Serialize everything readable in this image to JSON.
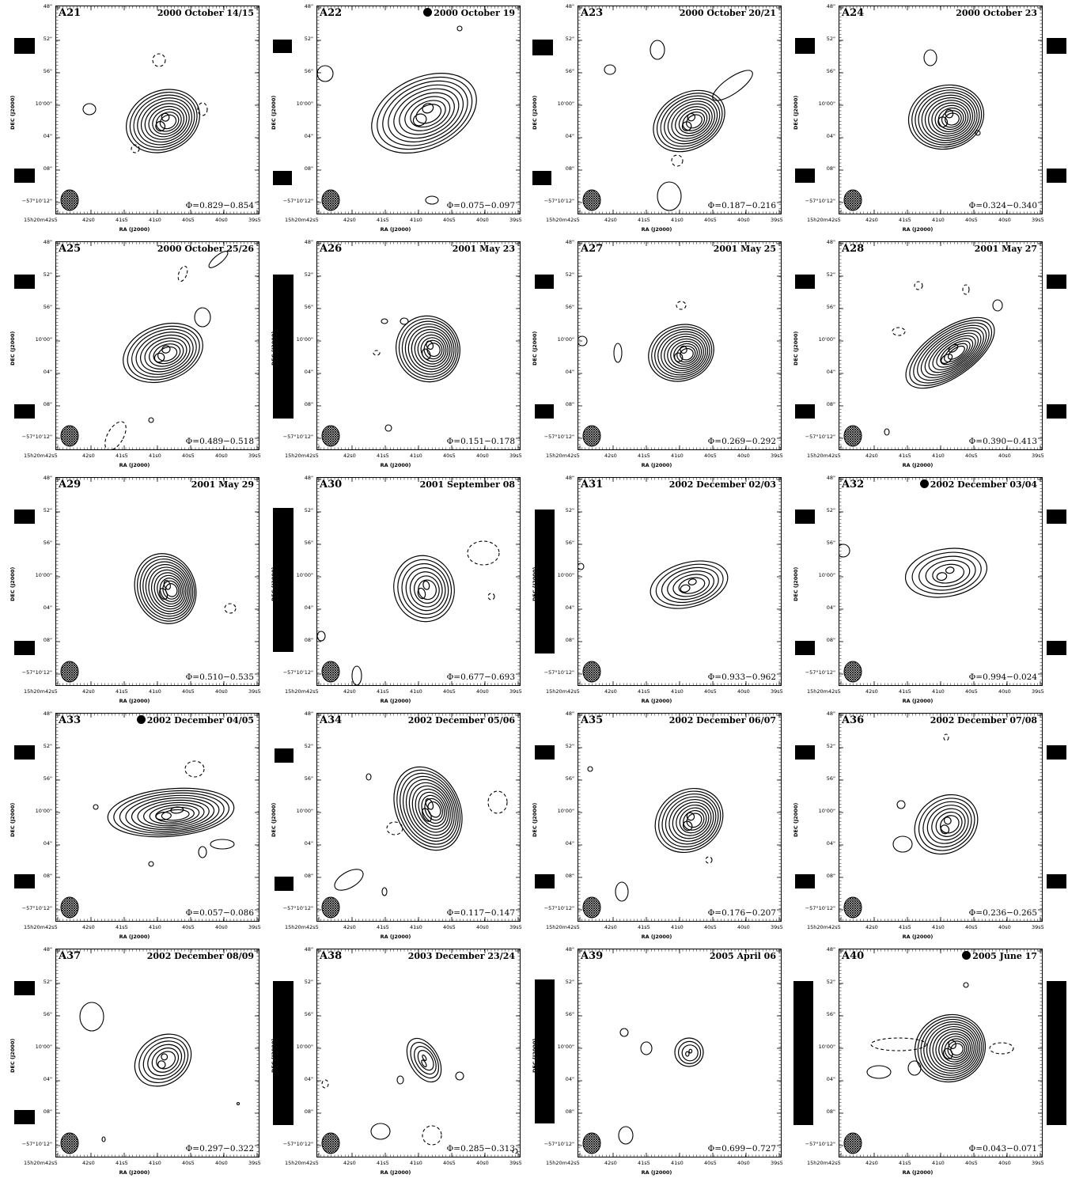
{
  "axes": {
    "y_ticks": [
      "48\"",
      "52\"",
      "56\"",
      "10'00\"",
      "04\"",
      "08\"",
      "−57°10'12\""
    ],
    "x_ticks": [
      "15h20m42s5",
      "42s0",
      "41s5",
      "41s0",
      "40s5",
      "40s0",
      "39s5"
    ],
    "x_title": "RA (J2000)",
    "y_title": "DEC (J2000)"
  },
  "panels": [
    {
      "id": "A21",
      "date": "2000 October 14/15",
      "phase": "Φ=0.829−0.854",
      "dot": false
    },
    {
      "id": "A22",
      "date": "2000 October 19",
      "phase": "Φ=0.075−0.097",
      "dot": true
    },
    {
      "id": "A23",
      "date": "2000 October 20/21",
      "phase": "Φ=0.187−0.216",
      "dot": false
    },
    {
      "id": "A24",
      "date": "2000 October 23",
      "phase": "Φ=0.324−0.340",
      "dot": false
    },
    {
      "id": "A25",
      "date": "2000 October 25/26",
      "phase": "Φ=0.489−0.518",
      "dot": false
    },
    {
      "id": "A26",
      "date": "2001 May 23",
      "phase": "Φ=0.151−0.178",
      "dot": false
    },
    {
      "id": "A27",
      "date": "2001 May 25",
      "phase": "Φ=0.269−0.292",
      "dot": false
    },
    {
      "id": "A28",
      "date": "2001 May 27",
      "phase": "Φ=0.390−0.413",
      "dot": false
    },
    {
      "id": "A29",
      "date": "2001 May 29",
      "phase": "Φ=0.510−0.535",
      "dot": false
    },
    {
      "id": "A30",
      "date": "2001 September 08",
      "phase": "Φ=0.677−0.693",
      "dot": false
    },
    {
      "id": "A31",
      "date": "2002 December 02/03",
      "phase": "Φ=0.933−0.962",
      "dot": false
    },
    {
      "id": "A32",
      "date": "2002 December 03/04",
      "phase": "Φ=0.994−0.024",
      "dot": true
    },
    {
      "id": "A33",
      "date": "2002 December 04/05",
      "phase": "Φ=0.057−0.086",
      "dot": true
    },
    {
      "id": "A34",
      "date": "2002 December 05/06",
      "phase": "Φ=0.117−0.147",
      "dot": false
    },
    {
      "id": "A35",
      "date": "2002 December 06/07",
      "phase": "Φ=0.176−0.207",
      "dot": false
    },
    {
      "id": "A36",
      "date": "2002 December 07/08",
      "phase": "Φ=0.236−0.265",
      "dot": false
    },
    {
      "id": "A37",
      "date": "2002 December 08/09",
      "phase": "Φ=0.297−0.322",
      "dot": false
    },
    {
      "id": "A38",
      "date": "2003 December 23/24",
      "phase": "Φ=0.285−0.313",
      "dot": false
    },
    {
      "id": "A39",
      "date": "2005 April 06",
      "phase": "Φ=0.699−0.727",
      "dot": false
    },
    {
      "id": "A40",
      "date": "2005 June 17",
      "phase": "Φ=0.043−0.071",
      "dot": true
    }
  ]
}
